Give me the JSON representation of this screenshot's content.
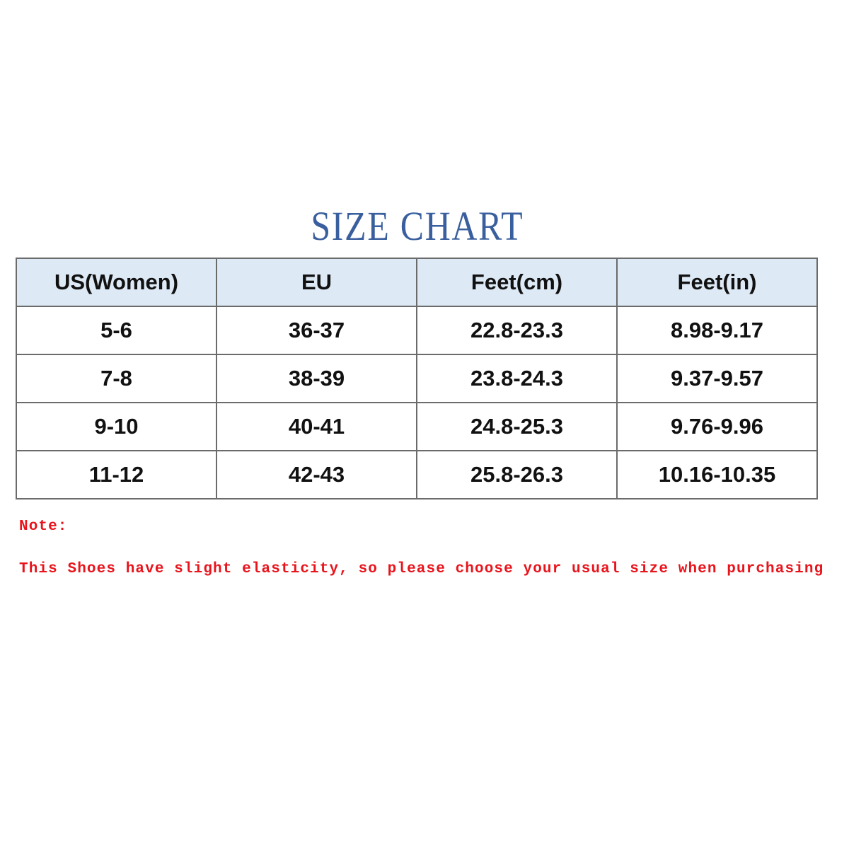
{
  "title": "SIZE CHART",
  "table": {
    "headers": [
      "US(Women)",
      "EU",
      "Feet(cm)",
      "Feet(in)"
    ],
    "rows": [
      [
        "5-6",
        "36-37",
        "22.8-23.3",
        "8.98-9.17"
      ],
      [
        "7-8",
        "38-39",
        "23.8-24.3",
        "9.37-9.57"
      ],
      [
        "9-10",
        "40-41",
        "24.8-25.3",
        "9.76-9.96"
      ],
      [
        "11-12",
        "42-43",
        "25.8-26.3",
        "10.16-10.35"
      ]
    ]
  },
  "note": {
    "label": "Note:",
    "text": "This Shoes have slight elasticity, so please choose your usual size when purchasing"
  },
  "colors": {
    "title": "#3a5f9e",
    "header_bg": "#dde9f5",
    "note": "#e8141c",
    "border": "#6b6b6b"
  }
}
